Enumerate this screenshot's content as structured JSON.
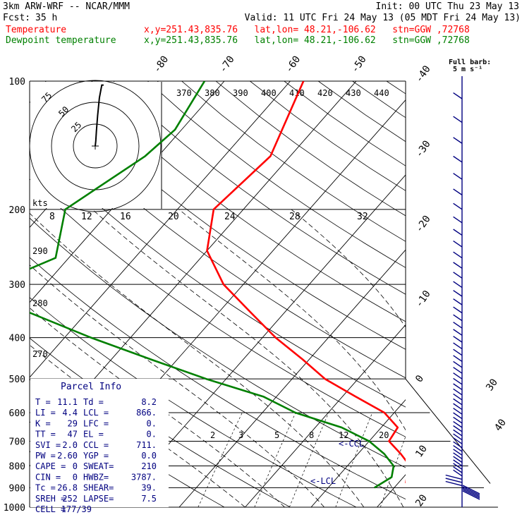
{
  "header": {
    "model": "3km ARW-WRF -- NCAR/MMM",
    "init": "Init: 00 UTC Thu 23 May 13",
    "fcst_label": "Fcst:",
    "fcst_value": "35 h",
    "valid": "Valid: 11 UTC Fri 24 May 13 (05 MDT Fri 24 May 13)"
  },
  "legend": [
    {
      "name": "Temperature",
      "info": "x,y=251.43,835.76   lat,lon= 48.21,-106.62   stn=GGW ,72768",
      "color": "#ff0000"
    },
    {
      "name": "Dewpoint temperature",
      "info": "x,y=251.43,835.76   lat,lon= 48.21,-106.62   stn=GGW ,72768",
      "color": "#008000"
    }
  ],
  "barb_key": {
    "line1": "Full barb:",
    "line2": "5 m s⁻¹"
  },
  "hodograph": {
    "ring_labels": [
      "75",
      "50",
      "25"
    ],
    "units": "kts",
    "path": [
      [
        14,
        24
      ],
      [
        11,
        24
      ],
      [
        7,
        19
      ],
      [
        4,
        12
      ],
      [
        2,
        6
      ],
      [
        1,
        2
      ],
      [
        0,
        0
      ]
    ]
  },
  "parcel_info": {
    "title": "Parcel Info",
    "rows": [
      [
        "T  =",
        "11.1",
        "Td =",
        "8.2"
      ],
      [
        "LI =",
        "4.4",
        "LCL =",
        "866."
      ],
      [
        "K  =",
        "29",
        "LFC =",
        "0."
      ],
      [
        "TT =",
        "47",
        "EL  =",
        "0."
      ],
      [
        "SVI =",
        "2.0",
        "CCL =",
        "711."
      ],
      [
        "PW =",
        "2.60",
        "YGP =",
        "0.0"
      ],
      [
        "CAPE =",
        "0",
        "SWEAT=",
        "210"
      ],
      [
        "CIN =",
        "0",
        "HWBZ=",
        "3787."
      ],
      [
        "Tc =",
        "26.8",
        "SHEAR=",
        "39."
      ],
      [
        "SREH =",
        "252",
        "LAPSE=",
        "7.5"
      ],
      [
        "CELL =",
        "177/39",
        "",
        ""
      ]
    ]
  },
  "chart_data": {
    "type": "skew-t",
    "pressure_levels": [
      100,
      200,
      300,
      400,
      500,
      600,
      700,
      800,
      900,
      1000
    ],
    "isotherm_labels": [
      -80,
      -70,
      -60,
      -50,
      -40,
      -30,
      -20,
      -10,
      0,
      10,
      20,
      30,
      40
    ],
    "theta_labels": [
      370,
      380,
      390,
      400,
      410,
      420,
      430,
      440
    ],
    "mixing_ratio_labels": [
      "2",
      "3",
      "5",
      "8",
      "12",
      "20"
    ],
    "dry_adiabat_labels": [
      290,
      280,
      270
    ],
    "hodo_speed_ticks": [
      8,
      12,
      16,
      20,
      24,
      28,
      32
    ],
    "lcl_label": "<-LCL",
    "ccl_label": "<-CCL",
    "series": [
      {
        "name": "Temperature",
        "color": "#ff0000",
        "points": [
          [
            100,
            -58
          ],
          [
            150,
            -53
          ],
          [
            200,
            -54.5
          ],
          [
            250,
            -50
          ],
          [
            300,
            -43
          ],
          [
            350,
            -35
          ],
          [
            400,
            -28
          ],
          [
            450,
            -21
          ],
          [
            500,
            -15
          ],
          [
            550,
            -8
          ],
          [
            600,
            -1.5
          ],
          [
            650,
            2.5
          ],
          [
            700,
            3
          ],
          [
            750,
            6.5
          ],
          [
            800,
            9.5
          ],
          [
            850,
            10.5
          ],
          [
            875,
            11.1
          ],
          [
            880,
            12
          ],
          [
            900,
            12.5
          ]
        ]
      },
      {
        "name": "Dewpoint temperature",
        "color": "#008000",
        "points": [
          [
            100,
            -73
          ],
          [
            130,
            -71
          ],
          [
            150,
            -72
          ],
          [
            200,
            -77
          ],
          [
            260,
            -72
          ],
          [
            300,
            -78
          ],
          [
            330,
            -74
          ],
          [
            400,
            -56
          ],
          [
            450,
            -44
          ],
          [
            500,
            -33
          ],
          [
            550,
            -22
          ],
          [
            600,
            -15
          ],
          [
            650,
            -6
          ],
          [
            700,
            0
          ],
          [
            750,
            4
          ],
          [
            800,
            7
          ],
          [
            850,
            8.2
          ],
          [
            900,
            7
          ]
        ]
      }
    ]
  }
}
